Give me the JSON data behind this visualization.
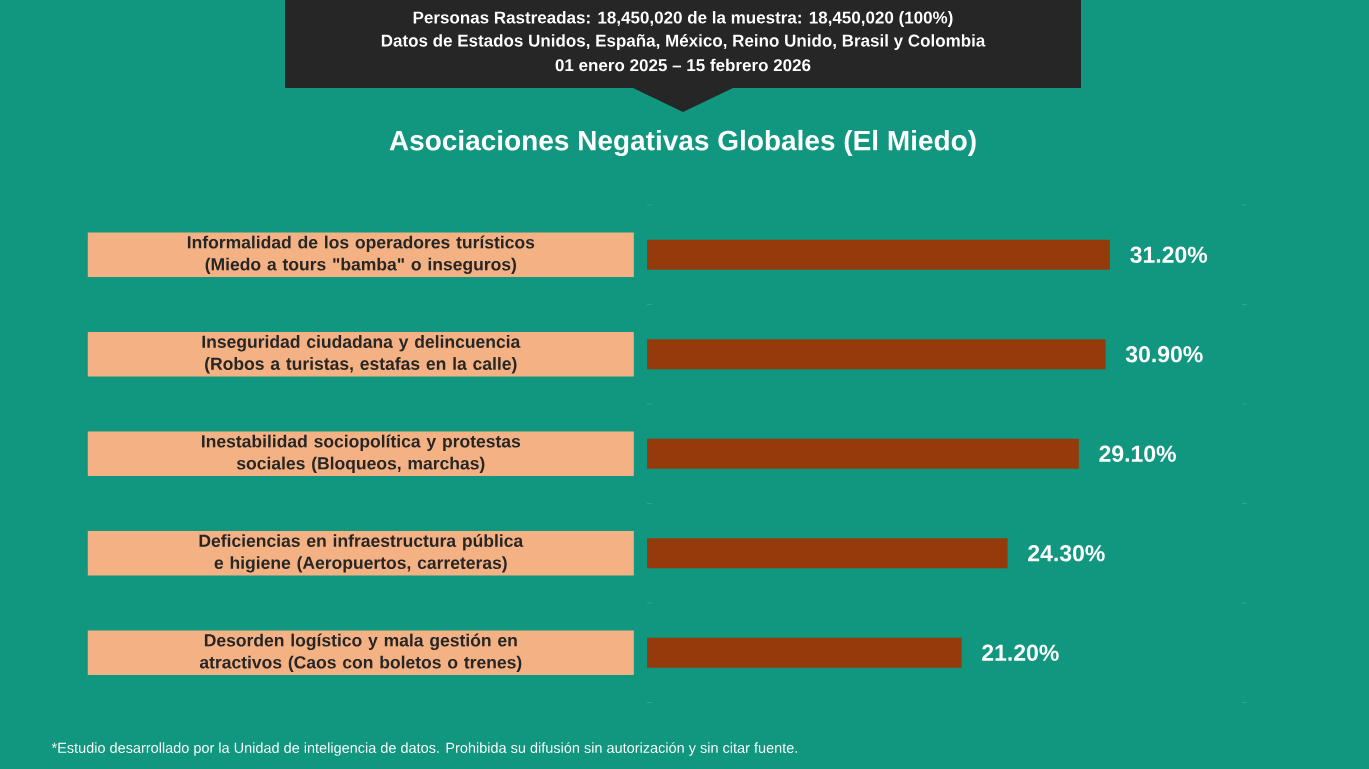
{
  "chart_data": {
    "type": "bar",
    "orientation": "horizontal",
    "title": "Asociaciones Negativas Globales (El Miedo)",
    "categories": [
      "Informalidad de los operadores turísticos (Miedo a tours \"bamba\" o inseguros)",
      "Inseguridad ciudadana y delincuencia (Robos a turistas, estafas en la calle)",
      "Inestabilidad sociopolítica y protestas sociales (Bloqueos, marchas)",
      "Deficiencias en infraestructura pública e higiene (Aeropuertos, carreteras)",
      "Desorden logístico y mala gestión en atractivos (Caos con boletos o trenes)"
    ],
    "values": [
      31.2,
      30.9,
      29.1,
      24.3,
      21.2
    ],
    "value_labels": [
      "31.20%",
      "30.90%",
      "29.10%",
      "24.30%",
      "21.20%"
    ],
    "color": "#943a0b",
    "tick_labels": "y",
    "annotations": [
      "Personas Rastreadas: 18,450,020 de la muestra: 18,450,020 (100%)",
      "Datos de Estados Unidos, España, México, Reino Unido, Brasil y Colombia",
      "01 enero 2025 – 15 febrero 2026",
      "*Estudio desarrollado por la Unidad de inteligencia de datos. Prohibida su difusión sin autorización y sin citar fuente."
    ]
  }
}
